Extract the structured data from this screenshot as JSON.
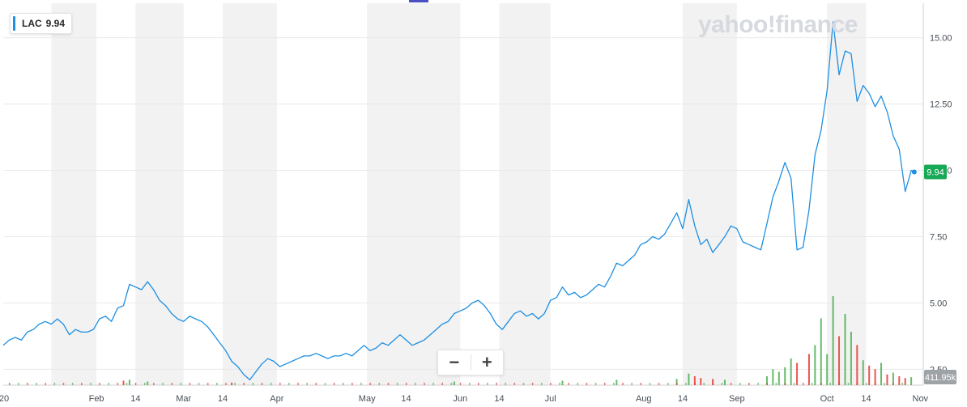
{
  "header": {
    "symbol": "LAC",
    "price": "9.94",
    "brand": "yahoo!finance"
  },
  "zoom": {
    "out_label": "−",
    "in_label": "+"
  },
  "colors": {
    "line": "#1e8fe1",
    "up": "#4caf50",
    "down": "#e53935",
    "shade": "#f2f2f2",
    "grid": "#e9e9e9",
    "current_badge": "#18a957"
  },
  "chart_data": {
    "type": "line",
    "title": "",
    "xlabel": "",
    "ylabel": "",
    "ylim": [
      1.9,
      16.3
    ],
    "y_ticks": [
      "2.50",
      "5.00",
      "7.50",
      "10.00",
      "12.50",
      "15.00"
    ],
    "y_tick_values": [
      2.5,
      5.0,
      7.5,
      10.0,
      12.5,
      15.0
    ],
    "current_value_label": "9.94",
    "volume_label": "411.95k",
    "x_tick_labels": [
      {
        "label": "'20",
        "day": 0
      },
      {
        "label": "Feb",
        "day": 31
      },
      {
        "label": "14",
        "day": 44
      },
      {
        "label": "Mar",
        "day": 60
      },
      {
        "label": "14",
        "day": 73
      },
      {
        "label": "Apr",
        "day": 91
      },
      {
        "label": "May",
        "day": 121
      },
      {
        "label": "14",
        "day": 134
      },
      {
        "label": "Jun",
        "day": 152
      },
      {
        "label": "14",
        "day": 165
      },
      {
        "label": "Jul",
        "day": 182
      },
      {
        "label": "Aug",
        "day": 213
      },
      {
        "label": "14",
        "day": 226
      },
      {
        "label": "Sep",
        "day": 244
      },
      {
        "label": "Oct",
        "day": 274
      },
      {
        "label": "14",
        "day": 287
      },
      {
        "label": "Nov",
        "day": 305
      }
    ],
    "shaded_months_days": [
      [
        16,
        31
      ],
      [
        44,
        60
      ],
      [
        73,
        91
      ],
      [
        121,
        134
      ],
      [
        134,
        152
      ],
      [
        165,
        182
      ],
      [
        226,
        244
      ],
      [
        274,
        287
      ]
    ],
    "series": [
      {
        "values": [
          [
            0,
            3.4
          ],
          [
            2,
            3.6
          ],
          [
            4,
            3.7
          ],
          [
            6,
            3.6
          ],
          [
            8,
            3.9
          ],
          [
            10,
            4.0
          ],
          [
            12,
            4.2
          ],
          [
            14,
            4.3
          ],
          [
            16,
            4.2
          ],
          [
            18,
            4.4
          ],
          [
            20,
            4.2
          ],
          [
            22,
            3.8
          ],
          [
            24,
            4.0
          ],
          [
            26,
            3.9
          ],
          [
            28,
            3.9
          ],
          [
            30,
            4.0
          ],
          [
            32,
            4.4
          ],
          [
            34,
            4.5
          ],
          [
            36,
            4.3
          ],
          [
            38,
            4.8
          ],
          [
            40,
            4.9
          ],
          [
            42,
            5.7
          ],
          [
            44,
            5.6
          ],
          [
            46,
            5.5
          ],
          [
            48,
            5.8
          ],
          [
            50,
            5.5
          ],
          [
            52,
            5.1
          ],
          [
            54,
            4.9
          ],
          [
            56,
            4.6
          ],
          [
            58,
            4.4
          ],
          [
            60,
            4.3
          ],
          [
            62,
            4.5
          ],
          [
            64,
            4.4
          ],
          [
            66,
            4.3
          ],
          [
            68,
            4.1
          ],
          [
            70,
            3.8
          ],
          [
            72,
            3.5
          ],
          [
            74,
            3.2
          ],
          [
            76,
            2.8
          ],
          [
            78,
            2.6
          ],
          [
            80,
            2.3
          ],
          [
            82,
            2.1
          ],
          [
            84,
            2.4
          ],
          [
            86,
            2.7
          ],
          [
            88,
            2.9
          ],
          [
            90,
            2.8
          ],
          [
            92,
            2.6
          ],
          [
            94,
            2.7
          ],
          [
            96,
            2.8
          ],
          [
            98,
            2.9
          ],
          [
            100,
            3.0
          ],
          [
            102,
            3.0
          ],
          [
            104,
            3.1
          ],
          [
            106,
            3.0
          ],
          [
            108,
            2.9
          ],
          [
            110,
            3.0
          ],
          [
            112,
            3.0
          ],
          [
            114,
            3.1
          ],
          [
            116,
            3.0
          ],
          [
            118,
            3.2
          ],
          [
            120,
            3.4
          ],
          [
            122,
            3.2
          ],
          [
            124,
            3.3
          ],
          [
            126,
            3.5
          ],
          [
            128,
            3.4
          ],
          [
            130,
            3.6
          ],
          [
            132,
            3.8
          ],
          [
            134,
            3.6
          ],
          [
            136,
            3.4
          ],
          [
            138,
            3.5
          ],
          [
            140,
            3.6
          ],
          [
            142,
            3.8
          ],
          [
            144,
            4.0
          ],
          [
            146,
            4.2
          ],
          [
            148,
            4.3
          ],
          [
            150,
            4.6
          ],
          [
            152,
            4.7
          ],
          [
            154,
            4.8
          ],
          [
            156,
            5.0
          ],
          [
            158,
            5.1
          ],
          [
            160,
            4.9
          ],
          [
            162,
            4.6
          ],
          [
            164,
            4.2
          ],
          [
            166,
            4.0
          ],
          [
            168,
            4.3
          ],
          [
            170,
            4.6
          ],
          [
            172,
            4.7
          ],
          [
            174,
            4.5
          ],
          [
            176,
            4.6
          ],
          [
            178,
            4.4
          ],
          [
            180,
            4.6
          ],
          [
            182,
            5.1
          ],
          [
            184,
            5.2
          ],
          [
            186,
            5.6
          ],
          [
            188,
            5.3
          ],
          [
            190,
            5.4
          ],
          [
            192,
            5.2
          ],
          [
            194,
            5.3
          ],
          [
            196,
            5.5
          ],
          [
            198,
            5.7
          ],
          [
            200,
            5.6
          ],
          [
            202,
            6.0
          ],
          [
            204,
            6.5
          ],
          [
            206,
            6.4
          ],
          [
            208,
            6.6
          ],
          [
            210,
            6.8
          ],
          [
            212,
            7.2
          ],
          [
            214,
            7.3
          ],
          [
            216,
            7.5
          ],
          [
            218,
            7.4
          ],
          [
            220,
            7.6
          ],
          [
            222,
            8.0
          ],
          [
            224,
            8.4
          ],
          [
            226,
            7.8
          ],
          [
            228,
            8.9
          ],
          [
            230,
            7.9
          ],
          [
            232,
            7.2
          ],
          [
            234,
            7.4
          ],
          [
            236,
            6.9
          ],
          [
            238,
            7.2
          ],
          [
            240,
            7.5
          ],
          [
            242,
            7.9
          ],
          [
            244,
            7.8
          ],
          [
            246,
            7.3
          ],
          [
            248,
            7.2
          ],
          [
            250,
            7.1
          ],
          [
            252,
            7.0
          ],
          [
            254,
            8.0
          ],
          [
            256,
            9.0
          ],
          [
            258,
            9.6
          ],
          [
            260,
            10.3
          ],
          [
            262,
            9.7
          ],
          [
            264,
            7.0
          ],
          [
            266,
            7.1
          ],
          [
            268,
            8.5
          ],
          [
            270,
            10.6
          ],
          [
            272,
            11.5
          ],
          [
            274,
            13.0
          ],
          [
            276,
            15.6
          ],
          [
            278,
            13.6
          ],
          [
            280,
            14.5
          ],
          [
            282,
            14.4
          ],
          [
            284,
            12.6
          ],
          [
            286,
            13.2
          ],
          [
            288,
            12.9
          ],
          [
            290,
            12.4
          ],
          [
            292,
            12.8
          ],
          [
            294,
            12.2
          ],
          [
            296,
            11.3
          ],
          [
            298,
            10.8
          ],
          [
            300,
            9.2
          ],
          [
            302,
            10.0
          ],
          [
            303,
            9.94
          ]
        ]
      }
    ],
    "volume_bars": [
      {
        "day": 276,
        "value": 1.0,
        "dir": "up"
      },
      {
        "day": 272,
        "value": 0.75,
        "dir": "up"
      },
      {
        "day": 280,
        "value": 0.8,
        "dir": "up"
      },
      {
        "day": 278,
        "value": 0.55,
        "dir": "down"
      },
      {
        "day": 282,
        "value": 0.6,
        "dir": "up"
      },
      {
        "day": 284,
        "value": 0.45,
        "dir": "down"
      },
      {
        "day": 270,
        "value": 0.45,
        "dir": "up"
      },
      {
        "day": 268,
        "value": 0.35,
        "dir": "down"
      },
      {
        "day": 274,
        "value": 0.35,
        "dir": "up"
      },
      {
        "day": 262,
        "value": 0.3,
        "dir": "up"
      },
      {
        "day": 264,
        "value": 0.25,
        "dir": "down"
      },
      {
        "day": 260,
        "value": 0.2,
        "dir": "up"
      },
      {
        "day": 286,
        "value": 0.28,
        "dir": "up"
      },
      {
        "day": 288,
        "value": 0.22,
        "dir": "down"
      },
      {
        "day": 290,
        "value": 0.18,
        "dir": "down"
      },
      {
        "day": 292,
        "value": 0.25,
        "dir": "up"
      },
      {
        "day": 294,
        "value": 0.12,
        "dir": "down"
      },
      {
        "day": 296,
        "value": 0.14,
        "dir": "up"
      },
      {
        "day": 298,
        "value": 0.1,
        "dir": "down"
      },
      {
        "day": 300,
        "value": 0.08,
        "dir": "down"
      },
      {
        "day": 302,
        "value": 0.09,
        "dir": "up"
      },
      {
        "day": 256,
        "value": 0.18,
        "dir": "up"
      },
      {
        "day": 258,
        "value": 0.15,
        "dir": "up"
      },
      {
        "day": 254,
        "value": 0.1,
        "dir": "up"
      },
      {
        "day": 228,
        "value": 0.13,
        "dir": "up"
      },
      {
        "day": 230,
        "value": 0.1,
        "dir": "down"
      },
      {
        "day": 224,
        "value": 0.07,
        "dir": "up"
      },
      {
        "day": 232,
        "value": 0.08,
        "dir": "down"
      },
      {
        "day": 236,
        "value": 0.07,
        "dir": "down"
      },
      {
        "day": 240,
        "value": 0.06,
        "dir": "up"
      },
      {
        "day": 204,
        "value": 0.06,
        "dir": "up"
      },
      {
        "day": 186,
        "value": 0.05,
        "dir": "up"
      },
      {
        "day": 150,
        "value": 0.04,
        "dir": "up"
      },
      {
        "day": 42,
        "value": 0.06,
        "dir": "up"
      },
      {
        "day": 40,
        "value": 0.05,
        "dir": "down"
      },
      {
        "day": 48,
        "value": 0.04,
        "dir": "up"
      },
      {
        "day": 76,
        "value": 0.03,
        "dir": "down"
      }
    ]
  }
}
